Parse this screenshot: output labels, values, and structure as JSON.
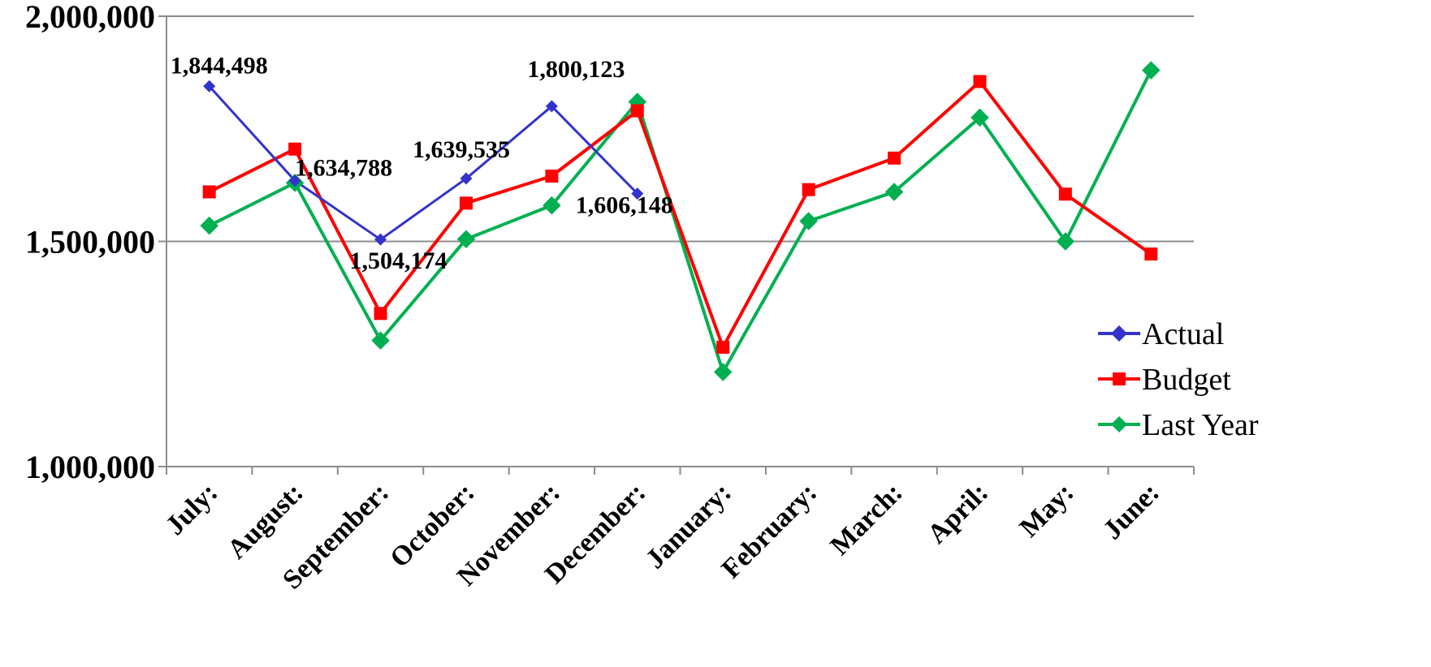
{
  "chart_data": {
    "type": "line",
    "title": "",
    "xlabel": "",
    "ylabel": "",
    "categories": [
      "July:",
      "August:",
      "September:",
      "October:",
      "November:",
      "December:",
      "January:",
      "February:",
      "March:",
      "April:",
      "May:",
      "June:"
    ],
    "ylim": [
      1000000,
      2000000
    ],
    "yticks": [
      {
        "value": 1000000,
        "label": "1,000,000"
      },
      {
        "value": 1500000,
        "label": "1,500,000"
      },
      {
        "value": 2000000,
        "label": "2,000,000"
      }
    ],
    "grid": "horizontal major lines",
    "legend_position": "right",
    "series": [
      {
        "name": "Actual",
        "color": "#3333cc",
        "marker": "diamond",
        "values": [
          1844498,
          1634788,
          1504174,
          1639535,
          1800123,
          1606148,
          null,
          null,
          null,
          null,
          null,
          null
        ],
        "data_labels": [
          "1,844,498",
          "1,634,788",
          "1,504,174",
          "1,639,535",
          "1,800,123",
          "1,606,148",
          "",
          "",
          "",
          "",
          "",
          ""
        ]
      },
      {
        "name": "Budget",
        "color": "#ff0000",
        "marker": "square",
        "values": [
          1610000,
          1705000,
          1340000,
          1585000,
          1645000,
          1790000,
          1265000,
          1615000,
          1685000,
          1855000,
          1605000,
          1472000
        ]
      },
      {
        "name": "Last Year",
        "color": "#00b050",
        "marker": "diamond",
        "values": [
          1535000,
          1630000,
          1280000,
          1505000,
          1580000,
          1810000,
          1210000,
          1545000,
          1610000,
          1775000,
          1500000,
          1880000
        ]
      }
    ]
  }
}
